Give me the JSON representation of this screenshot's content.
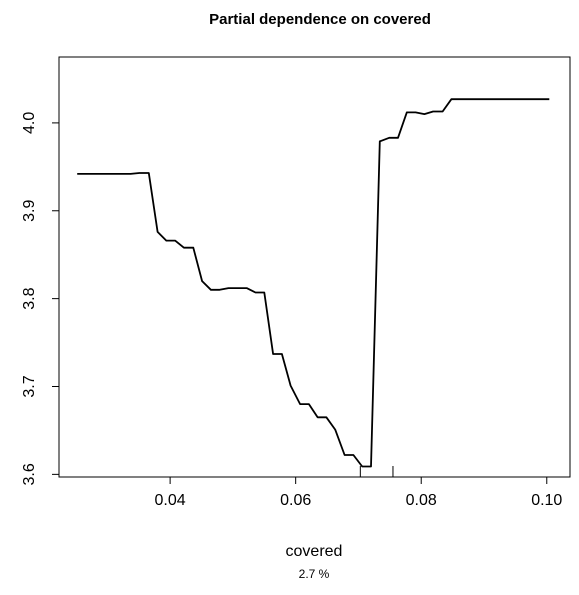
{
  "chart_data": {
    "type": "line",
    "title": "Partial dependence on covered",
    "xlabel": "covered",
    "ylabel": "",
    "subtitle": "2.7 %",
    "xlim": [
      0.0223,
      0.1037
    ],
    "ylim": [
      3.597,
      4.075
    ],
    "x_ticks": [
      0.04,
      0.06,
      0.08,
      0.1
    ],
    "x_tick_labels": [
      "0.04",
      "0.06",
      "0.08",
      "0.10"
    ],
    "y_ticks": [
      3.6,
      3.7,
      3.8,
      3.9,
      4.0
    ],
    "y_tick_labels": [
      "3.6",
      "3.7",
      "3.8",
      "3.9",
      "4.0"
    ],
    "rug": [
      0.0703,
      0.0755
    ],
    "series": [
      {
        "x": [
          0.0252,
          0.0266,
          0.028,
          0.0295,
          0.0309,
          0.0323,
          0.0337,
          0.0351,
          0.0366,
          0.038,
          0.0394,
          0.0408,
          0.0422,
          0.0437,
          0.0451,
          0.0465,
          0.0479,
          0.0493,
          0.0507,
          0.0522,
          0.0536,
          0.055,
          0.0564,
          0.0578,
          0.0592,
          0.0607,
          0.0621,
          0.0635,
          0.0649,
          0.0663,
          0.0678,
          0.0692,
          0.0706,
          0.072,
          0.0734,
          0.0749,
          0.0763,
          0.0777,
          0.0791,
          0.0805,
          0.0819,
          0.0834,
          0.0848,
          0.0862,
          0.0876,
          0.089,
          0.0905,
          0.0919,
          0.0933,
          0.0947,
          0.0961,
          0.0975,
          0.099,
          0.1004
        ],
        "y": [
          3.942,
          3.942,
          3.942,
          3.942,
          3.942,
          3.942,
          3.942,
          3.943,
          3.943,
          3.876,
          3.866,
          3.866,
          3.858,
          3.858,
          3.82,
          3.81,
          3.81,
          3.812,
          3.812,
          3.812,
          3.807,
          3.807,
          3.737,
          3.737,
          3.701,
          3.68,
          3.68,
          3.665,
          3.665,
          3.651,
          3.622,
          3.622,
          3.609,
          3.609,
          3.979,
          3.983,
          3.983,
          4.012,
          4.012,
          4.01,
          4.013,
          4.013,
          4.027,
          4.027,
          4.027,
          4.027,
          4.027,
          4.027,
          4.027,
          4.027,
          4.027,
          4.027,
          4.027,
          4.027
        ]
      }
    ]
  }
}
